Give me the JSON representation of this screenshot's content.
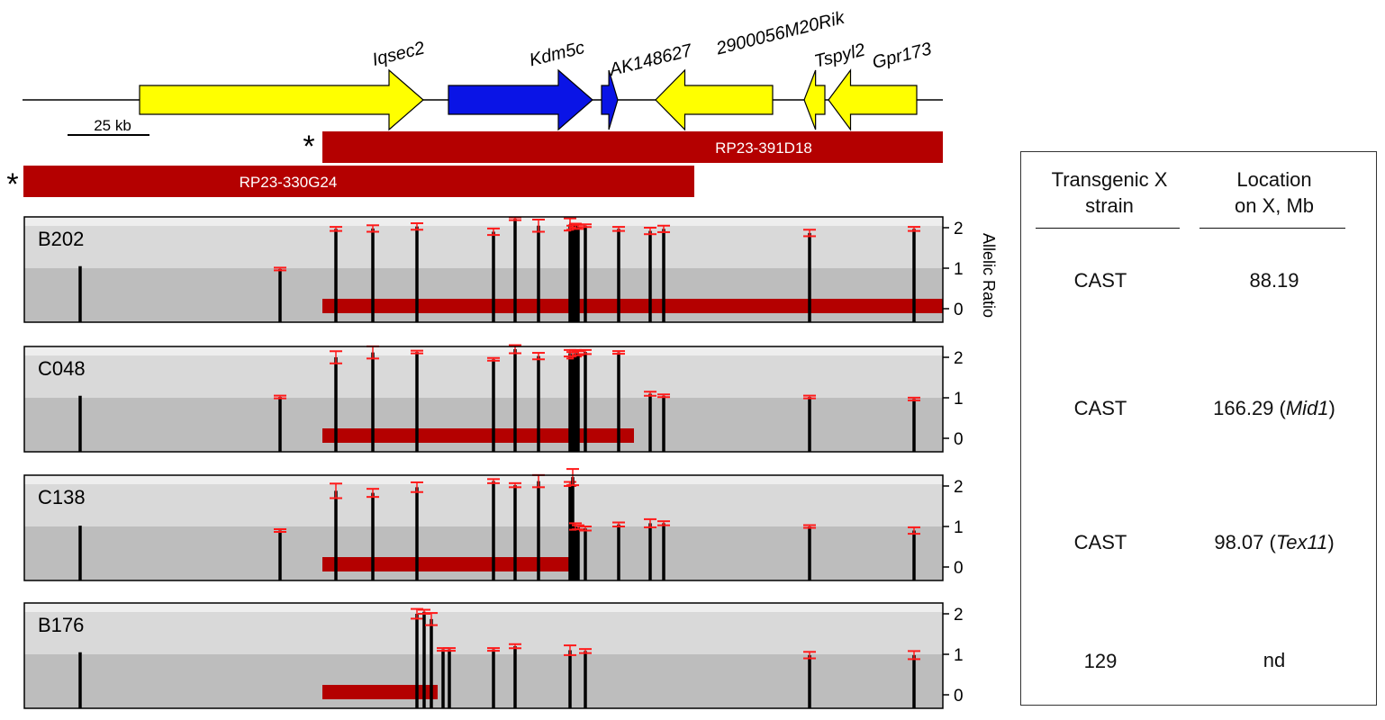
{
  "genes": [
    {
      "name": "Iqsec2",
      "start": 155,
      "end": 470,
      "dir": "right",
      "color": "#ffff00"
    },
    {
      "name": "Kdm5c",
      "start": 498,
      "end": 658,
      "dir": "right",
      "color": "#0a14e6"
    },
    {
      "name": "AK148627",
      "start": 668,
      "end": 686,
      "dir": "right",
      "color": "#0a14e6"
    },
    {
      "name": "2900056M20Rik",
      "start": 858,
      "end": 728,
      "dir": "left",
      "color": "#ffff00"
    },
    {
      "name": "Tspyl2",
      "start": 916,
      "end": 893,
      "dir": "left",
      "color": "#ffff00"
    },
    {
      "name": "Gpr173",
      "start": 1018,
      "end": 920,
      "dir": "left",
      "color": "#ffff00"
    }
  ],
  "scale_bar": "25 kb",
  "bacs": [
    {
      "name": "RP23-391D18",
      "marker": "*"
    },
    {
      "name": "RP23-330G24",
      "marker": "*"
    }
  ],
  "axis_label": "Allelic Ratio",
  "ticks": [
    "0",
    "1",
    "2"
  ],
  "panels": [
    {
      "name": "B202",
      "bac_end": 1047,
      "points": [
        {
          "x": 89,
          "v": 1.05,
          "e": 0
        },
        {
          "x": 311,
          "v": 0.98,
          "e": 0.03
        },
        {
          "x": 373,
          "v": 1.97,
          "e": 0.05
        },
        {
          "x": 414,
          "v": 1.98,
          "e": 0.08
        },
        {
          "x": 463,
          "v": 2.03,
          "e": 0.08
        },
        {
          "x": 548,
          "v": 1.9,
          "e": 0.08
        },
        {
          "x": 572,
          "v": 2.22,
          "e": 0.03
        },
        {
          "x": 598,
          "v": 2.05,
          "e": 0.15
        },
        {
          "x": 633,
          "v": 2.08,
          "e": 0.15
        },
        {
          "x": 636,
          "v": 2.0,
          "e": 0.05
        },
        {
          "x": 639,
          "v": 2.05,
          "e": 0.05
        },
        {
          "x": 642,
          "v": 2.02,
          "e": 0.05
        },
        {
          "x": 650,
          "v": 2.05,
          "e": 0.03
        },
        {
          "x": 687,
          "v": 1.97,
          "e": 0.05
        },
        {
          "x": 722,
          "v": 1.92,
          "e": 0.08
        },
        {
          "x": 737,
          "v": 1.97,
          "e": 0.08
        },
        {
          "x": 899,
          "v": 1.87,
          "e": 0.08
        },
        {
          "x": 1015,
          "v": 1.97,
          "e": 0.05
        }
      ]
    },
    {
      "name": "C048",
      "bac_end": 704,
      "points": [
        {
          "x": 89,
          "v": 1.05,
          "e": 0
        },
        {
          "x": 311,
          "v": 1.02,
          "e": 0.02
        },
        {
          "x": 373,
          "v": 2.0,
          "e": 0.15
        },
        {
          "x": 414,
          "v": 2.12,
          "e": 0.15
        },
        {
          "x": 463,
          "v": 2.13,
          "e": 0.03
        },
        {
          "x": 548,
          "v": 1.95,
          "e": 0.03
        },
        {
          "x": 572,
          "v": 2.2,
          "e": 0.1
        },
        {
          "x": 598,
          "v": 2.03,
          "e": 0.08
        },
        {
          "x": 633,
          "v": 2.1,
          "e": 0.08
        },
        {
          "x": 636,
          "v": 2.05,
          "e": 0.08
        },
        {
          "x": 639,
          "v": 2.1,
          "e": 0.08
        },
        {
          "x": 642,
          "v": 2.1,
          "e": 0.05
        },
        {
          "x": 650,
          "v": 2.13,
          "e": 0.05
        },
        {
          "x": 687,
          "v": 2.12,
          "e": 0.03
        },
        {
          "x": 722,
          "v": 1.1,
          "e": 0.05
        },
        {
          "x": 737,
          "v": 1.05,
          "e": 0.03
        },
        {
          "x": 899,
          "v": 1.02,
          "e": 0.03
        },
        {
          "x": 1015,
          "v": 0.97,
          "e": 0.03
        }
      ]
    },
    {
      "name": "C138",
      "bac_end": 640,
      "points": [
        {
          "x": 89,
          "v": 1.02,
          "e": 0
        },
        {
          "x": 311,
          "v": 0.9,
          "e": 0.03
        },
        {
          "x": 373,
          "v": 1.88,
          "e": 0.18
        },
        {
          "x": 414,
          "v": 1.83,
          "e": 0.1
        },
        {
          "x": 463,
          "v": 1.97,
          "e": 0.12
        },
        {
          "x": 548,
          "v": 2.12,
          "e": 0.05
        },
        {
          "x": 572,
          "v": 2.02,
          "e": 0.05
        },
        {
          "x": 598,
          "v": 2.12,
          "e": 0.15
        },
        {
          "x": 633,
          "v": 2.05,
          "e": 0.05
        },
        {
          "x": 636,
          "v": 2.22,
          "e": 0.2
        },
        {
          "x": 639,
          "v": 1.0,
          "e": 0.08
        },
        {
          "x": 642,
          "v": 0.98,
          "e": 0.05
        },
        {
          "x": 650,
          "v": 0.95,
          "e": 0.05
        },
        {
          "x": 687,
          "v": 1.05,
          "e": 0.05
        },
        {
          "x": 722,
          "v": 1.08,
          "e": 0.1
        },
        {
          "x": 737,
          "v": 1.08,
          "e": 0.05
        },
        {
          "x": 899,
          "v": 1.0,
          "e": 0.03
        },
        {
          "x": 1015,
          "v": 0.9,
          "e": 0.08
        }
      ]
    },
    {
      "name": "B176",
      "bac_end": 486,
      "points": [
        {
          "x": 89,
          "v": 1.05,
          "e": 0
        },
        {
          "x": 463,
          "v": 2.0,
          "e": 0.12
        },
        {
          "x": 471,
          "v": 2.05,
          "e": 0.05
        },
        {
          "x": 479,
          "v": 1.87,
          "e": 0.15
        },
        {
          "x": 492,
          "v": 1.12,
          "e": 0.03
        },
        {
          "x": 499,
          "v": 1.12,
          "e": 0.03
        },
        {
          "x": 548,
          "v": 1.12,
          "e": 0.03
        },
        {
          "x": 572,
          "v": 1.2,
          "e": 0.05
        },
        {
          "x": 633,
          "v": 1.1,
          "e": 0.12
        },
        {
          "x": 650,
          "v": 1.08,
          "e": 0.05
        },
        {
          "x": 899,
          "v": 0.98,
          "e": 0.08
        },
        {
          "x": 1015,
          "v": 0.98,
          "e": 0.1
        }
      ]
    }
  ],
  "table": {
    "col1_header": [
      "Transgenic X",
      "strain"
    ],
    "col2_header": [
      "Location",
      "on X, Mb"
    ],
    "rows": [
      {
        "strain": "CAST",
        "location": "88.19",
        "gene": ""
      },
      {
        "strain": "CAST",
        "location": "166.29 (",
        "gene": "Mid1",
        "close": ")"
      },
      {
        "strain": "CAST",
        "location": "98.07 (",
        "gene": "Tex11",
        "close": ")"
      },
      {
        "strain": "129",
        "location": "nd",
        "gene": ""
      }
    ]
  }
}
